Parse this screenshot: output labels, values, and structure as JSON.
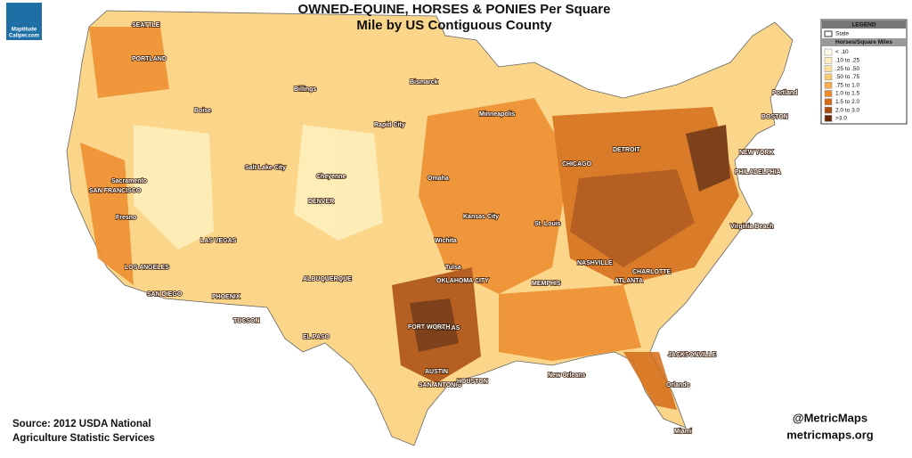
{
  "title": [
    "OWNED-EQUINE, HORSES & PONIES Per Square",
    "Mile by US Contiguous County"
  ],
  "logo": [
    "Maptitude",
    "Caliper.com"
  ],
  "legend": {
    "title": "LEGEND",
    "state_label": "State",
    "subtitle": "Horses/Square Miles",
    "items": [
      {
        "label": "< .10",
        "color": "#fffde6"
      },
      {
        "label": ".10 to .25",
        "color": "#fff1bf"
      },
      {
        "label": ".25 to .50",
        "color": "#fde19c"
      },
      {
        "label": ".50 to .75",
        "color": "#fbca74"
      },
      {
        "label": ".75 to 1.0",
        "color": "#f6ae4c"
      },
      {
        "label": "1.0 to 1.5",
        "color": "#ec8c2c"
      },
      {
        "label": "1.5 to 2.0",
        "color": "#d46c18"
      },
      {
        "label": "2.0 to 3.0",
        "color": "#a94c10"
      },
      {
        "label": ">3.0",
        "color": "#682808"
      }
    ]
  },
  "source": [
    "Source:  2012 USDA National",
    "Agriculture Statistic Services"
  ],
  "credits": [
    "@MetricMaps",
    "metricmaps.org"
  ],
  "cities": [
    "SEATTLE",
    "PORTLAND",
    "Boise",
    "Salt Lake City",
    "SAN FRANCISCO",
    "Sacramento",
    "Fresno",
    "LOS ANGELES",
    "SAN DIEGO",
    "LAS VEGAS",
    "PHOENIX",
    "TUCSON",
    "ALBUQUERQUE",
    "DENVER",
    "Cheyenne",
    "Billings",
    "Bismarck",
    "Rapid City",
    "Omaha",
    "Kansas City",
    "Wichita",
    "OKLAHOMA CITY",
    "Tulsa",
    "DALLAS",
    "FORT WORTH",
    "AUSTIN",
    "SAN ANTONIO",
    "HOUSTON",
    "EL PASO",
    "Minneapolis",
    "CHICAGO",
    "DETROIT",
    "St. Louis",
    "MEMPHIS",
    "NASHVILLE",
    "ATLANTA",
    "CHARLOTTE",
    "JACKSONVILLE",
    "Orlando",
    "Miami",
    "Virginia Beach",
    "PHILADELPHIA",
    "NEW YORK",
    "BOSTON",
    "Portland",
    "New Orleans"
  ]
}
